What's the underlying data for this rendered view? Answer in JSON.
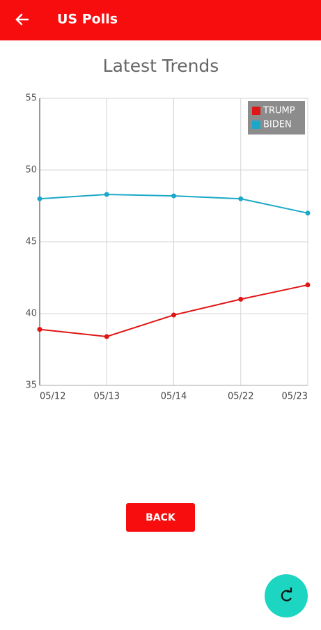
{
  "app_bar": {
    "title": "US Polls"
  },
  "chart_data": {
    "type": "line",
    "title": "Latest Trends",
    "categories": [
      "05/12",
      "05/13",
      "05/14",
      "05/22",
      "05/23"
    ],
    "series": [
      {
        "name": "TRUMP",
        "color": "#e01515",
        "values": [
          38.9,
          38.4,
          39.9,
          41,
          42
        ]
      },
      {
        "name": "BIDEN",
        "color": "#1ba8c8",
        "values": [
          48,
          48.3,
          48.2,
          48,
          47
        ]
      }
    ],
    "ylim": [
      35,
      55
    ],
    "yticks": [
      35,
      40,
      45,
      50,
      55
    ],
    "grid": true,
    "legend": "top-right"
  },
  "button": {
    "label": "BACK"
  }
}
